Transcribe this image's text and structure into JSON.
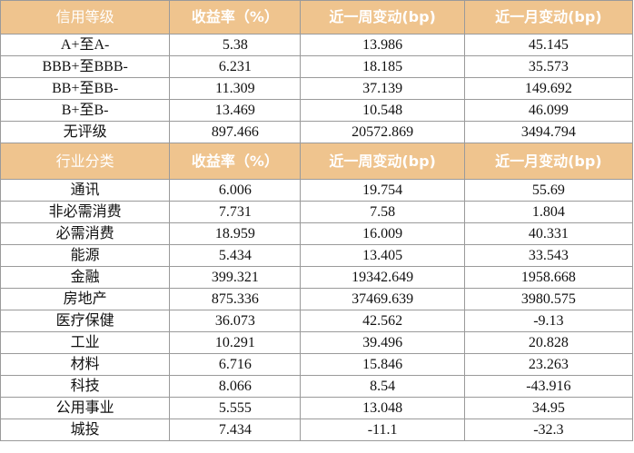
{
  "credit_table": {
    "headers": [
      "信用等级",
      "收益率（%）",
      "近一周变动(bp)",
      "近一月变动(bp)"
    ],
    "rows": [
      [
        "A+至A-",
        "5.38",
        "13.986",
        "45.145"
      ],
      [
        "BBB+至BBB-",
        "6.231",
        "18.185",
        "35.573"
      ],
      [
        "BB+至BB-",
        "11.309",
        "37.139",
        "149.692"
      ],
      [
        "B+至B-",
        "13.469",
        "10.548",
        "46.099"
      ],
      [
        "无评级",
        "897.466",
        "20572.869",
        "3494.794"
      ]
    ]
  },
  "industry_table": {
    "headers": [
      "行业分类",
      "收益率（%）",
      "近一周变动(bp)",
      "近一月变动(bp)"
    ],
    "rows": [
      [
        "通讯",
        "6.006",
        "19.754",
        "55.69"
      ],
      [
        "非必需消费",
        "7.731",
        "7.58",
        "1.804"
      ],
      [
        "必需消费",
        "18.959",
        "16.009",
        "40.331"
      ],
      [
        "能源",
        "5.434",
        "13.405",
        "33.543"
      ],
      [
        "金融",
        "399.321",
        "19342.649",
        "1958.668"
      ],
      [
        "房地产",
        "875.336",
        "37469.639",
        "3980.575"
      ],
      [
        "医疗保健",
        "36.073",
        "42.562",
        "-9.13"
      ],
      [
        "工业",
        "10.291",
        "39.496",
        "20.828"
      ],
      [
        "材料",
        "6.716",
        "15.846",
        "23.263"
      ],
      [
        "科技",
        "8.066",
        "8.54",
        "-43.916"
      ],
      [
        "公用事业",
        "5.555",
        "13.048",
        "34.95"
      ],
      [
        "城投",
        "7.434",
        "-11.1",
        "-32.3"
      ]
    ]
  },
  "colors": {
    "header_fill": "#efc48e",
    "header_text": "#ffffff",
    "border": "#9a9a9a"
  }
}
